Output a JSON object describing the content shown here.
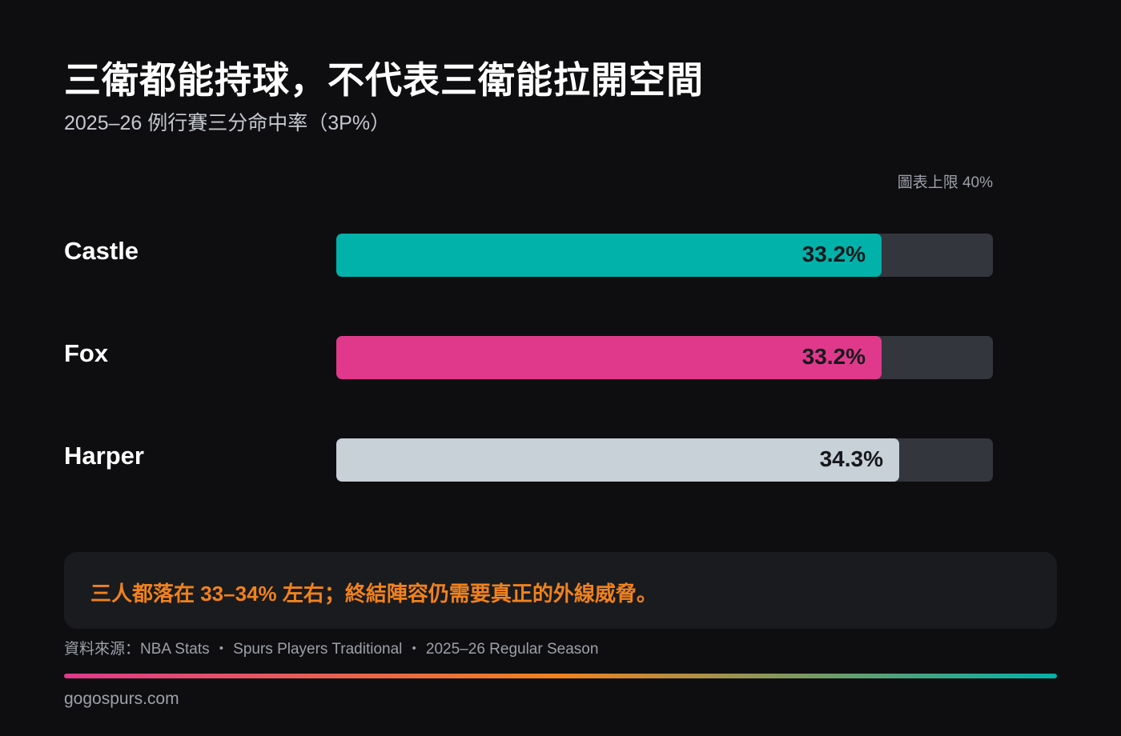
{
  "header": {
    "title": "三衛都能持球，不代表三衛能拉開空間",
    "subtitle": "2025–26 例行賽三分命中率（3P%）",
    "scale_cap_label": "圖表上限 40%"
  },
  "chart_data": {
    "type": "bar",
    "orientation": "horizontal",
    "title": "三衛都能持球，不代表三衛能拉開空間",
    "subtitle": "2025–26 例行賽三分命中率（3P%）",
    "categories": [
      "Castle",
      "Fox",
      "Harper"
    ],
    "values": [
      33.2,
      33.2,
      34.3
    ],
    "value_labels": [
      "33.2%",
      "33.2%",
      "34.3%"
    ],
    "colors": [
      "#00b2a9",
      "#e0398c",
      "#c8d0d8"
    ],
    "xlim": [
      0,
      40
    ],
    "grid": false,
    "legend": "none"
  },
  "note": {
    "text": "三人都落在 33–34% 左右；終結陣容仍需要真正的外線威脅。",
    "color": "#f0821d"
  },
  "footer": {
    "source": "資料來源：NBA Stats ・ Spurs Players Traditional ・ 2025–26 Regular Season",
    "site": "gogospurs.com",
    "gradient_colors": [
      "#e0398c",
      "#f0821d",
      "#00b2a9"
    ]
  },
  "colors": {
    "background": "#0e0e10",
    "track": "#33363c",
    "note_background": "#1a1b1f"
  }
}
